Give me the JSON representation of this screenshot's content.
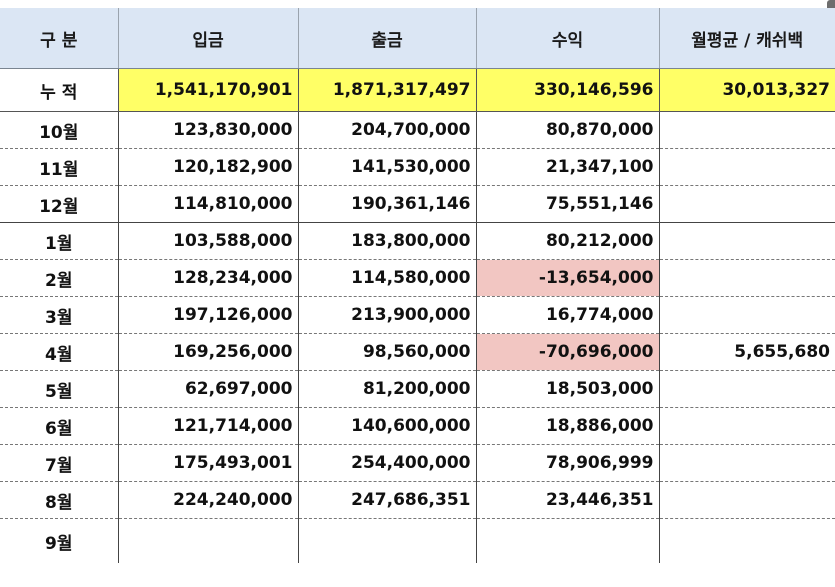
{
  "headers": [
    "구 분",
    "입금",
    "출금",
    "수익",
    "월평균 / 캐쉬백"
  ],
  "total": {
    "label": "누 적",
    "deposit": "1,541,170,901",
    "withdraw": "1,871,317,497",
    "profit": "330,146,596",
    "monthly": "30,013,327"
  },
  "rows": [
    {
      "month": "10월",
      "deposit": "123,830,000",
      "withdraw": "204,700,000",
      "profit": "80,870,000",
      "monthly": ""
    },
    {
      "month": "11월",
      "deposit": "120,182,900",
      "withdraw": "141,530,000",
      "profit": "21,347,100",
      "monthly": ""
    },
    {
      "month": "12월",
      "deposit": "114,810,000",
      "withdraw": "190,361,146",
      "profit": "75,551,146",
      "monthly": ""
    },
    {
      "month": "1월",
      "deposit": "103,588,000",
      "withdraw": "183,800,000",
      "profit": "80,212,000",
      "monthly": ""
    },
    {
      "month": "2월",
      "deposit": "128,234,000",
      "withdraw": "114,580,000",
      "profit": "-13,654,000",
      "monthly": ""
    },
    {
      "month": "3월",
      "deposit": "197,126,000",
      "withdraw": "213,900,000",
      "profit": "16,774,000",
      "monthly": ""
    },
    {
      "month": "4월",
      "deposit": "169,256,000",
      "withdraw": "98,560,000",
      "profit": "-70,696,000",
      "monthly": "5,655,680"
    },
    {
      "month": "5월",
      "deposit": "62,697,000",
      "withdraw": "81,200,000",
      "profit": "18,503,000",
      "monthly": ""
    },
    {
      "month": "6월",
      "deposit": "121,714,000",
      "withdraw": "140,600,000",
      "profit": "18,886,000",
      "monthly": ""
    },
    {
      "month": "7월",
      "deposit": "175,493,001",
      "withdraw": "254,400,000",
      "profit": "78,906,999",
      "monthly": ""
    },
    {
      "month": "8월",
      "deposit": "224,240,000",
      "withdraw": "247,686,351",
      "profit": "23,446,351",
      "monthly": ""
    },
    {
      "month": "9월",
      "deposit": "",
      "withdraw": "",
      "profit": "",
      "monthly": ""
    }
  ],
  "colors": {
    "header_bg": "#dbe6f4",
    "total_bg": "#ffff66",
    "negative_bg": "#f2c6c2"
  }
}
